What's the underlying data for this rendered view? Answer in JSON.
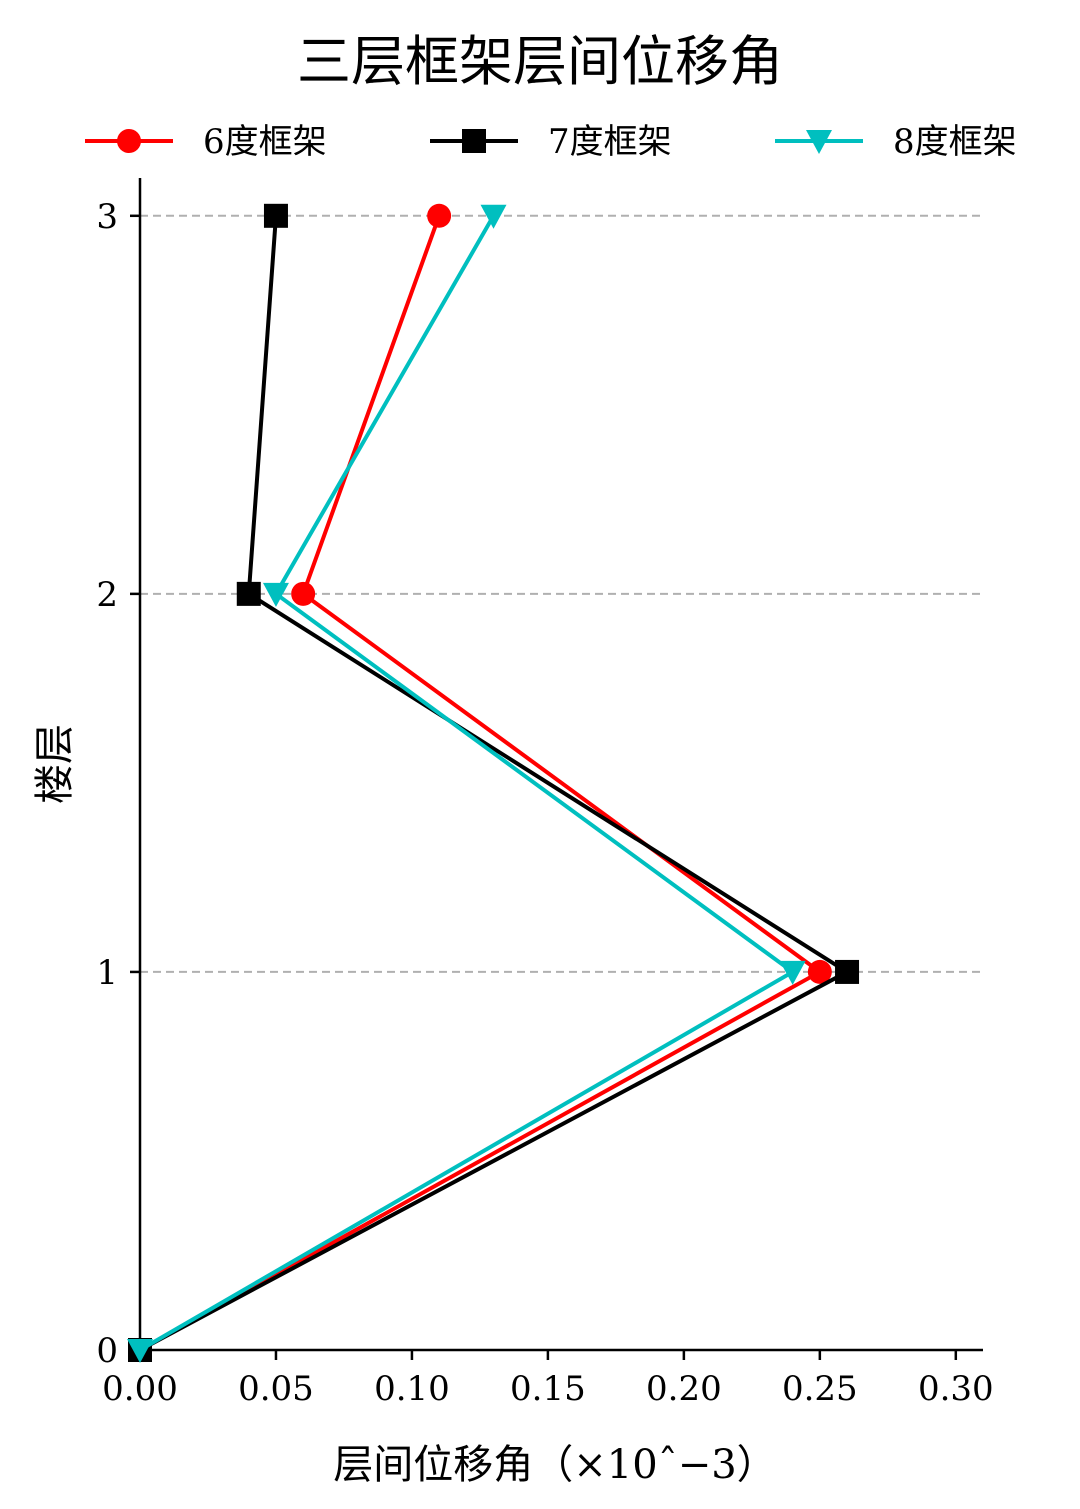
{
  "chart_data": {
    "type": "line",
    "title": "三层框架层间位移角",
    "xlabel": "层间位移角（×10ˆ−3）",
    "ylabel": "楼层",
    "xlim": [
      0.0,
      0.31
    ],
    "ylim": [
      0,
      3.1
    ],
    "xticks": [
      0.0,
      0.05,
      0.1,
      0.15,
      0.2,
      0.25,
      0.3
    ],
    "xtick_labels": [
      "0.00",
      "0.05",
      "0.10",
      "0.15",
      "0.20",
      "0.25",
      "0.30"
    ],
    "yticks": [
      0,
      1,
      2,
      3
    ],
    "ytick_labels": [
      "0",
      "1",
      "2",
      "3"
    ],
    "grid": "horizontal-dashed",
    "legend_position": "top",
    "series": [
      {
        "name": "6度框架",
        "color": "#ff0000",
        "marker": "circle",
        "x": [
          0.0,
          0.25,
          0.06,
          0.11
        ],
        "y": [
          0,
          1,
          2,
          3
        ]
      },
      {
        "name": "7度框架",
        "color": "#000000",
        "marker": "square",
        "x": [
          0.0,
          0.26,
          0.04,
          0.05
        ],
        "y": [
          0,
          1,
          2,
          3
        ]
      },
      {
        "name": "8度框架",
        "color": "#00bfbf",
        "marker": "triangle-down",
        "x": [
          0.0,
          0.24,
          0.05,
          0.13
        ],
        "y": [
          0,
          1,
          2,
          3
        ]
      }
    ]
  }
}
